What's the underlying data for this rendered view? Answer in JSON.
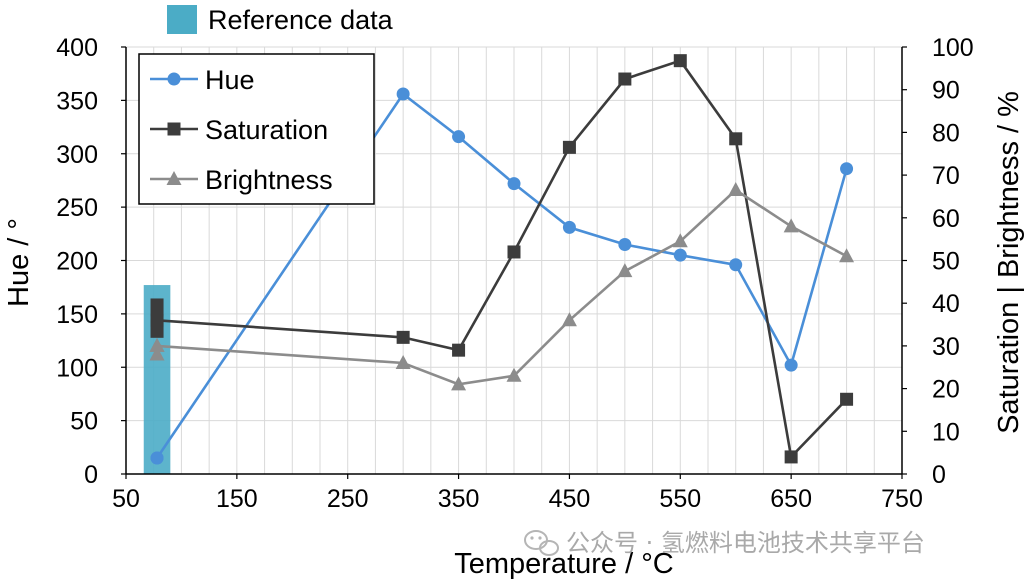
{
  "chart_data": {
    "type": "line",
    "xlabel": "Temperature / °C",
    "ylabel_left": "Hue / °",
    "ylabel_right": "Saturation | Brightness / %",
    "xlim": [
      50,
      750
    ],
    "ylim_left": [
      0,
      400
    ],
    "ylim_right": [
      0,
      100
    ],
    "x_ticks": [
      50,
      150,
      250,
      350,
      450,
      550,
      650,
      750
    ],
    "y_left_ticks": [
      0,
      50,
      100,
      150,
      200,
      250,
      300,
      350,
      400
    ],
    "y_right_ticks": [
      0,
      10,
      20,
      30,
      40,
      50,
      60,
      70,
      80,
      90,
      100
    ],
    "grid": true,
    "reference": {
      "label": "Reference data",
      "x_range": [
        66,
        90
      ],
      "y_left_top": 177,
      "color": "#4bacc6"
    },
    "reference_points": [
      {
        "series": "Hue",
        "x": 78,
        "y": 15
      },
      {
        "series": "Saturation",
        "x": 78,
        "y": 39
      },
      {
        "series": "Saturation",
        "x": 78,
        "y": 34
      },
      {
        "series": "Brightness",
        "x": 78,
        "y": 30
      },
      {
        "series": "Brightness",
        "x": 78,
        "y": 28
      }
    ],
    "series": [
      {
        "name": "Hue",
        "axis": "left",
        "marker": "circle",
        "color": "#4a8fd8",
        "x": [
          78,
          300,
          350,
          400,
          450,
          500,
          550,
          600,
          650,
          700
        ],
        "y": [
          15,
          356,
          316,
          272,
          231,
          215,
          205,
          196,
          102,
          286
        ]
      },
      {
        "name": "Saturation",
        "axis": "right",
        "marker": "square",
        "color": "#3c3c3c",
        "x": [
          78,
          300,
          350,
          400,
          450,
          500,
          550,
          600,
          650,
          700
        ],
        "y": [
          36,
          32,
          29,
          52,
          76.5,
          92.5,
          96.8,
          78.5,
          4,
          17.5
        ]
      },
      {
        "name": "Brightness",
        "axis": "right",
        "marker": "triangle",
        "color": "#8c8c8c",
        "x": [
          78,
          300,
          350,
          400,
          450,
          500,
          550,
          600,
          650,
          700
        ],
        "y": [
          30,
          26,
          21,
          23,
          36,
          47.5,
          54.5,
          66.5,
          58,
          51
        ]
      }
    ],
    "legend": [
      "Hue",
      "Saturation",
      "Brightness"
    ],
    "legend_position": "top-left"
  },
  "watermark": "公众号 · 氢燃料电池技术共享平台",
  "watermark_icon": "wechat-icon"
}
